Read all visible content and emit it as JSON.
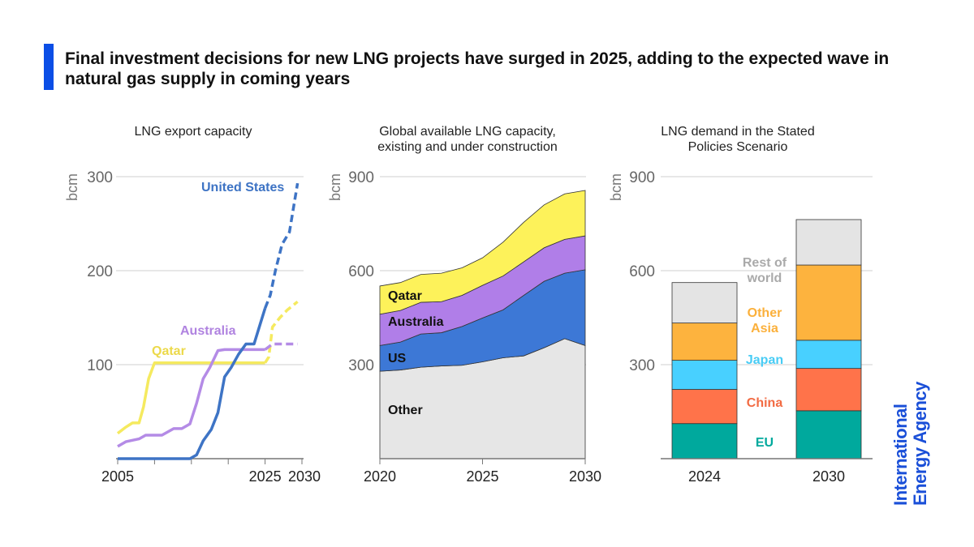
{
  "header": {
    "title": "Final investment decisions for new LNG projects have surged in 2025, adding to the expected wave in natural gas supply in coming years",
    "accent_color": "#0b4ee6"
  },
  "logo": {
    "line1": "International",
    "line2": "Energy Agency",
    "color": "#1a4fd8"
  },
  "chart_data": [
    {
      "type": "line",
      "title": "LNG export capacity",
      "ylabel": "bcm",
      "xlim": [
        2005,
        2030
      ],
      "ylim": [
        0,
        300
      ],
      "yticks": [
        100,
        200,
        300
      ],
      "xtick_labels": [
        "2005",
        "2025",
        "2030"
      ],
      "xticks": [
        2005,
        2010,
        2015,
        2020,
        2025,
        2030
      ],
      "grid": true,
      "note": "",
      "series": [
        {
          "name": "United States",
          "color": "#3e74c5",
          "x": [
            2005,
            2014.8,
            2015.7,
            2016.6,
            2017.7,
            2018.6,
            2019.5,
            2020.4,
            2021.4,
            2022.4,
            2023.5,
            2024.4,
            2025,
            2025.7,
            2026.4,
            2027.3,
            2028.3,
            2029.4
          ],
          "y": [
            0,
            0,
            4,
            19,
            31,
            49,
            87,
            97,
            111,
            122,
            122,
            145,
            160,
            174,
            200,
            228,
            241,
            293
          ],
          "projection_from": 2025
        },
        {
          "name": "Australia",
          "color": "#b48be6",
          "x": [
            2005,
            2006.1,
            2007.9,
            2008.8,
            2011,
            2012.6,
            2013.7,
            2014.8,
            2015.7,
            2016.6,
            2017.5,
            2018.6,
            2019.5,
            2025,
            2026,
            2027,
            2028,
            2029.4
          ],
          "y": [
            13,
            18,
            21,
            25,
            25,
            32,
            32,
            37,
            59,
            85,
            97,
            115,
            116,
            116,
            122,
            122,
            122,
            122
          ],
          "projection_from": 2025
        },
        {
          "name": "Qatar",
          "color": "#f5ea5f",
          "x": [
            2005,
            2006,
            2007,
            2007.9,
            2008.5,
            2009.2,
            2010,
            2025,
            2025.5,
            2026,
            2027,
            2028,
            2029.4
          ],
          "y": [
            27,
            33,
            38,
            38,
            55,
            85,
            102,
            102,
            108,
            140,
            150,
            158,
            167
          ],
          "projection_from": 2025
        }
      ]
    },
    {
      "type": "area",
      "stacked": true,
      "title": "Global available LNG capacity, existing and under construction",
      "title_lines": [
        "Global available LNG capacity,",
        "existing and under construction"
      ],
      "ylabel": "bcm",
      "xlim": [
        2020,
        2030
      ],
      "ylim": [
        0,
        900
      ],
      "yticks": [
        300,
        600,
        900
      ],
      "xticks": [
        2020,
        2025,
        2030
      ],
      "grid": true,
      "x": [
        2020,
        2021,
        2022,
        2023,
        2024,
        2025,
        2026,
        2027,
        2028,
        2029,
        2030
      ],
      "series": [
        {
          "name": "Other",
          "color": "#e6e6e6",
          "values": [
            279,
            283,
            292,
            296,
            298,
            309,
            322,
            328,
            354,
            383,
            361
          ]
        },
        {
          "name": "US",
          "color": "#3d78d6",
          "values": [
            82,
            89,
            106,
            106,
            124,
            140,
            153,
            193,
            212,
            209,
            242
          ]
        },
        {
          "name": "Australia",
          "color": "#b07ee8",
          "values": [
            100,
            101,
            101,
            99,
            99,
            104,
            108,
            107,
            107,
            108,
            108
          ]
        },
        {
          "name": "Qatar",
          "color": "#fdf25a",
          "values": [
            90,
            89,
            89,
            91,
            88,
            88,
            108,
            126,
            137,
            145,
            145
          ]
        }
      ]
    },
    {
      "type": "bar",
      "stacked": true,
      "title": "LNG demand in the Stated Policies Scenario",
      "title_lines": [
        "LNG demand in the Stated",
        "Policies Scenario"
      ],
      "ylabel": "bcm",
      "ylim": [
        0,
        900
      ],
      "yticks": [
        300,
        600,
        900
      ],
      "grid": true,
      "categories": [
        "2024",
        "2030"
      ],
      "series": [
        {
          "name": "EU",
          "color": "#00a99d",
          "values": [
            112,
            153
          ]
        },
        {
          "name": "China",
          "color": "#ff734a",
          "values": [
            109,
            135
          ]
        },
        {
          "name": "Japan",
          "color": "#48d0ff",
          "values": [
            93,
            90
          ]
        },
        {
          "name": "Other Asia",
          "label_lines": [
            "Other",
            "Asia"
          ],
          "color": "#fdb33e",
          "values": [
            119,
            240
          ]
        },
        {
          "name": "Rest of world",
          "label_lines": [
            "Rest of",
            "world"
          ],
          "label_color": "#aaaaaa",
          "color": "#e4e4e4",
          "values": [
            129,
            145
          ]
        }
      ]
    }
  ]
}
